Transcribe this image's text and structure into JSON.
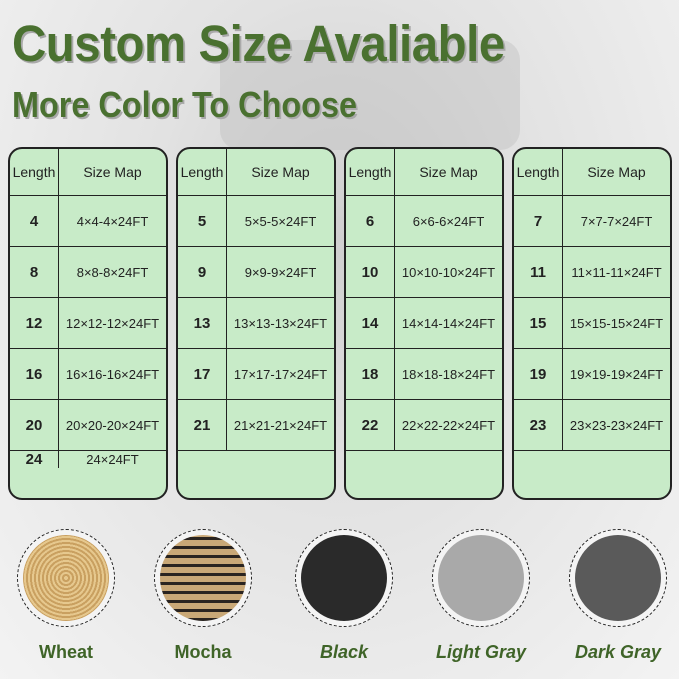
{
  "header": {
    "title": "Custom Size Avaliable",
    "subtitle": "More Color To Choose"
  },
  "tables": [
    {
      "headers": [
        "Length",
        "Size Map"
      ],
      "rows": [
        [
          "4",
          "4×4-4×24FT"
        ],
        [
          "8",
          "8×8-8×24FT"
        ],
        [
          "12",
          "12×12-12×24FT"
        ],
        [
          "16",
          "16×16-16×24FT"
        ],
        [
          "20",
          "20×20-20×24FT"
        ],
        [
          "24",
          "24×24FT"
        ]
      ]
    },
    {
      "headers": [
        "Length",
        "Size Map"
      ],
      "rows": [
        [
          "5",
          "5×5-5×24FT"
        ],
        [
          "9",
          "9×9-9×24FT"
        ],
        [
          "13",
          "13×13-13×24FT"
        ],
        [
          "17",
          "17×17-17×24FT"
        ],
        [
          "21",
          "21×21-21×24FT"
        ],
        [
          "",
          ""
        ]
      ]
    },
    {
      "headers": [
        "Length",
        "Size Map"
      ],
      "rows": [
        [
          "6",
          "6×6-6×24FT"
        ],
        [
          "10",
          "10×10-10×24FT"
        ],
        [
          "14",
          "14×14-14×24FT"
        ],
        [
          "18",
          "18×18-18×24FT"
        ],
        [
          "22",
          "22×22-22×24FT"
        ],
        [
          "",
          ""
        ]
      ]
    },
    {
      "headers": [
        "Length",
        "Size Map"
      ],
      "rows": [
        [
          "7",
          "7×7-7×24FT"
        ],
        [
          "11",
          "11×11-11×24FT"
        ],
        [
          "15",
          "15×15-15×24FT"
        ],
        [
          "19",
          "19×19-19×24FT"
        ],
        [
          "23",
          "23×23-23×24FT"
        ],
        [
          "",
          ""
        ]
      ]
    }
  ],
  "colors": [
    {
      "name": "Wheat",
      "color": "#d9b77c"
    },
    {
      "name": "Mocha",
      "color": "#a88a5c"
    },
    {
      "name": "Black",
      "color": "#2a2a2a"
    },
    {
      "name": "Light Gray",
      "color": "#a9a9a9"
    },
    {
      "name": "Dark Gray",
      "color": "#5a5a5a"
    }
  ],
  "colors_theme": {
    "title": "#4a7130",
    "table_bg": "#c8ebc8"
  }
}
